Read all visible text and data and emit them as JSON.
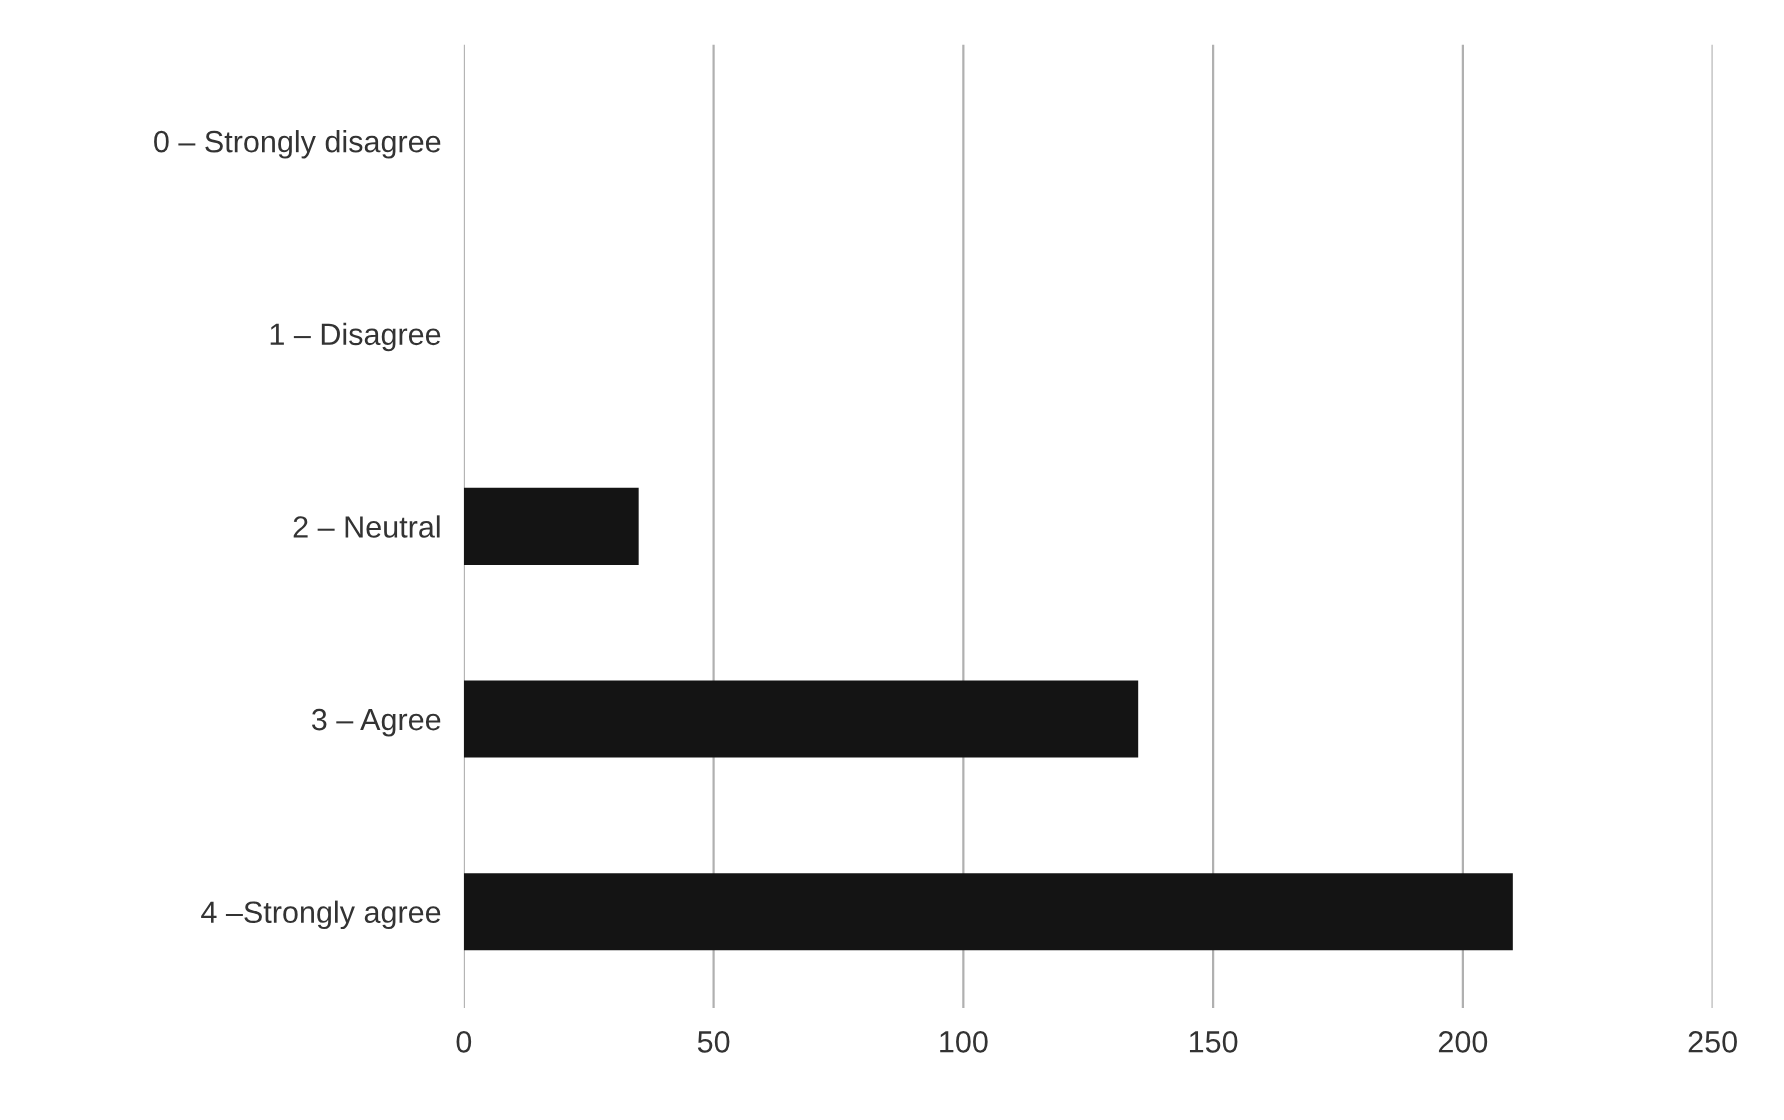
{
  "chart_data": {
    "type": "bar",
    "orientation": "horizontal",
    "categories": [
      "0 – Strongly disagree",
      "1 – Disagree",
      "2 – Neutral",
      "3 – Agree",
      "4 –Strongly agree"
    ],
    "values": [
      0,
      0,
      35,
      135,
      210
    ],
    "color": "#141414",
    "xlim": [
      0,
      250
    ],
    "xticks": [
      0,
      50,
      100,
      150,
      200,
      250
    ],
    "grid": "x"
  }
}
